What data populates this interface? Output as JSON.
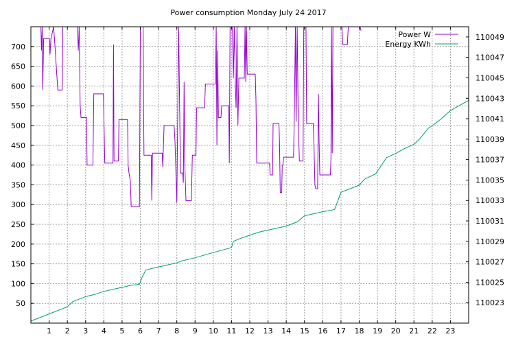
{
  "chart_data": {
    "type": "line",
    "title": "Power consumption Monday July 24 2017",
    "xlabel": "",
    "ylabel": "",
    "xlim": [
      0,
      24
    ],
    "ylim": [
      0,
      750
    ],
    "y2lim": [
      110021,
      110050
    ],
    "x_ticks": [
      1,
      2,
      3,
      4,
      5,
      6,
      7,
      8,
      9,
      10,
      11,
      12,
      13,
      14,
      15,
      16,
      17,
      18,
      19,
      20,
      21,
      22,
      23
    ],
    "y_ticks": [
      50,
      100,
      150,
      200,
      250,
      300,
      350,
      400,
      450,
      500,
      550,
      600,
      650,
      700
    ],
    "y2_ticks": [
      110023,
      110025,
      110027,
      110029,
      110031,
      110033,
      110035,
      110037,
      110039,
      110041,
      110043,
      110045,
      110047,
      110049
    ],
    "grid": true,
    "legend_position": "top-right",
    "series": [
      {
        "name": "Power W",
        "axis": "y",
        "color": "#9400d3",
        "points": [
          [
            0.55,
            750
          ],
          [
            0.58,
            690
          ],
          [
            0.62,
            750
          ],
          [
            0.65,
            590
          ],
          [
            0.7,
            720
          ],
          [
            1.02,
            720
          ],
          [
            1.05,
            680
          ],
          [
            1.1,
            720
          ],
          [
            1.25,
            750
          ],
          [
            1.35,
            680
          ],
          [
            1.42,
            630
          ],
          [
            1.48,
            590
          ],
          [
            1.72,
            590
          ],
          [
            1.75,
            750
          ],
          [
            1.9,
            750
          ],
          [
            2.55,
            750
          ],
          [
            2.6,
            690
          ],
          [
            2.65,
            750
          ],
          [
            2.7,
            550
          ],
          [
            2.75,
            520
          ],
          [
            3.05,
            520
          ],
          [
            3.08,
            400
          ],
          [
            3.4,
            400
          ],
          [
            3.45,
            580
          ],
          [
            3.98,
            580
          ],
          [
            4.0,
            530
          ],
          [
            4.05,
            405
          ],
          [
            4.5,
            405
          ],
          [
            4.53,
            705
          ],
          [
            4.56,
            410
          ],
          [
            4.8,
            410
          ],
          [
            4.83,
            515
          ],
          [
            5.3,
            515
          ],
          [
            5.33,
            400
          ],
          [
            5.38,
            380
          ],
          [
            5.45,
            360
          ],
          [
            5.5,
            295
          ],
          [
            5.95,
            295
          ],
          [
            6.0,
            750
          ],
          [
            6.15,
            750
          ],
          [
            6.2,
            425
          ],
          [
            6.6,
            425
          ],
          [
            6.63,
            310
          ],
          [
            6.67,
            430
          ],
          [
            7.2,
            430
          ],
          [
            7.23,
            395
          ],
          [
            7.3,
            500
          ],
          [
            7.85,
            500
          ],
          [
            7.9,
            460
          ],
          [
            8.0,
            305
          ],
          [
            8.1,
            750
          ],
          [
            8.2,
            380
          ],
          [
            8.32,
            380
          ],
          [
            8.36,
            355
          ],
          [
            8.4,
            610
          ],
          [
            8.43,
            415
          ],
          [
            8.5,
            310
          ],
          [
            8.8,
            310
          ],
          [
            8.85,
            425
          ],
          [
            9.05,
            425
          ],
          [
            9.08,
            545
          ],
          [
            9.52,
            545
          ],
          [
            9.57,
            605
          ],
          [
            10.12,
            605
          ],
          [
            10.16,
            750
          ],
          [
            10.2,
            450
          ],
          [
            10.24,
            690
          ],
          [
            10.28,
            520
          ],
          [
            10.42,
            520
          ],
          [
            10.46,
            550
          ],
          [
            10.85,
            550
          ],
          [
            10.88,
            405
          ],
          [
            10.92,
            750
          ],
          [
            11.05,
            750
          ],
          [
            11.1,
            620
          ],
          [
            11.15,
            750
          ],
          [
            11.22,
            580
          ],
          [
            11.25,
            545
          ],
          [
            11.3,
            750
          ],
          [
            11.35,
            500
          ],
          [
            11.4,
            620
          ],
          [
            11.7,
            620
          ],
          [
            11.74,
            750
          ],
          [
            11.78,
            610
          ],
          [
            11.82,
            750
          ],
          [
            11.86,
            630
          ],
          [
            12.3,
            630
          ],
          [
            12.34,
            565
          ],
          [
            12.38,
            405
          ],
          [
            13.08,
            405
          ],
          [
            13.12,
            375
          ],
          [
            13.25,
            375
          ],
          [
            13.28,
            505
          ],
          [
            13.6,
            505
          ],
          [
            13.63,
            460
          ],
          [
            13.67,
            330
          ],
          [
            13.75,
            330
          ],
          [
            13.78,
            400
          ],
          [
            13.82,
            400
          ],
          [
            13.86,
            420
          ],
          [
            14.4,
            420
          ],
          [
            14.44,
            530
          ],
          [
            14.5,
            750
          ],
          [
            14.54,
            510
          ],
          [
            14.6,
            750
          ],
          [
            14.65,
            550
          ],
          [
            14.7,
            440
          ],
          [
            14.72,
            410
          ],
          [
            14.92,
            410
          ],
          [
            14.96,
            750
          ],
          [
            15.08,
            750
          ],
          [
            15.12,
            505
          ],
          [
            15.48,
            505
          ],
          [
            15.52,
            450
          ],
          [
            15.57,
            350
          ],
          [
            15.62,
            340
          ],
          [
            15.72,
            340
          ],
          [
            15.76,
            580
          ],
          [
            15.8,
            460
          ],
          [
            15.84,
            375
          ],
          [
            16.42,
            375
          ],
          [
            16.45,
            415
          ],
          [
            16.48,
            750
          ],
          [
            16.52,
            430
          ],
          [
            16.56,
            750
          ],
          [
            16.7,
            750
          ],
          [
            16.75,
            750
          ],
          [
            16.8,
            750
          ],
          [
            17.05,
            750
          ],
          [
            17.1,
            705
          ],
          [
            17.35,
            705
          ],
          [
            17.4,
            750
          ],
          [
            18.05,
            750
          ],
          [
            18.1,
            740
          ]
        ]
      },
      {
        "name": "Energy KWh",
        "axis": "y2",
        "color": "#009e73",
        "points": [
          [
            0.0,
            110021.2
          ],
          [
            1.0,
            110021.9
          ],
          [
            2.0,
            110022.6
          ],
          [
            2.3,
            110023.1
          ],
          [
            3.0,
            110023.6
          ],
          [
            3.5,
            110023.8
          ],
          [
            4.0,
            110024.1
          ],
          [
            4.5,
            110024.3
          ],
          [
            5.0,
            110024.5
          ],
          [
            5.5,
            110024.7
          ],
          [
            5.95,
            110024.8
          ],
          [
            6.1,
            110025.5
          ],
          [
            6.3,
            110026.2
          ],
          [
            7.0,
            110026.5
          ],
          [
            8.0,
            110026.9
          ],
          [
            8.3,
            110027.1
          ],
          [
            9.0,
            110027.4
          ],
          [
            10.0,
            110027.9
          ],
          [
            11.0,
            110028.4
          ],
          [
            11.1,
            110029.0
          ],
          [
            11.5,
            110029.3
          ],
          [
            12.0,
            110029.6
          ],
          [
            12.5,
            110029.9
          ],
          [
            13.0,
            110030.1
          ],
          [
            13.5,
            110030.3
          ],
          [
            14.0,
            110030.5
          ],
          [
            14.6,
            110030.9
          ],
          [
            15.0,
            110031.5
          ],
          [
            15.5,
            110031.7
          ],
          [
            16.0,
            110031.9
          ],
          [
            16.65,
            110032.1
          ],
          [
            17.0,
            110033.8
          ],
          [
            18.0,
            110034.5
          ],
          [
            18.3,
            110035.1
          ],
          [
            18.9,
            110035.6
          ],
          [
            19.5,
            110037.2
          ],
          [
            20.0,
            110037.6
          ],
          [
            20.5,
            110038.1
          ],
          [
            21.0,
            110038.5
          ],
          [
            21.3,
            110039.0
          ],
          [
            21.8,
            110040.1
          ],
          [
            22.0,
            110040.3
          ],
          [
            22.5,
            110041.0
          ],
          [
            23.0,
            110041.8
          ],
          [
            23.5,
            110042.3
          ],
          [
            24.0,
            110042.8
          ]
        ]
      }
    ]
  }
}
